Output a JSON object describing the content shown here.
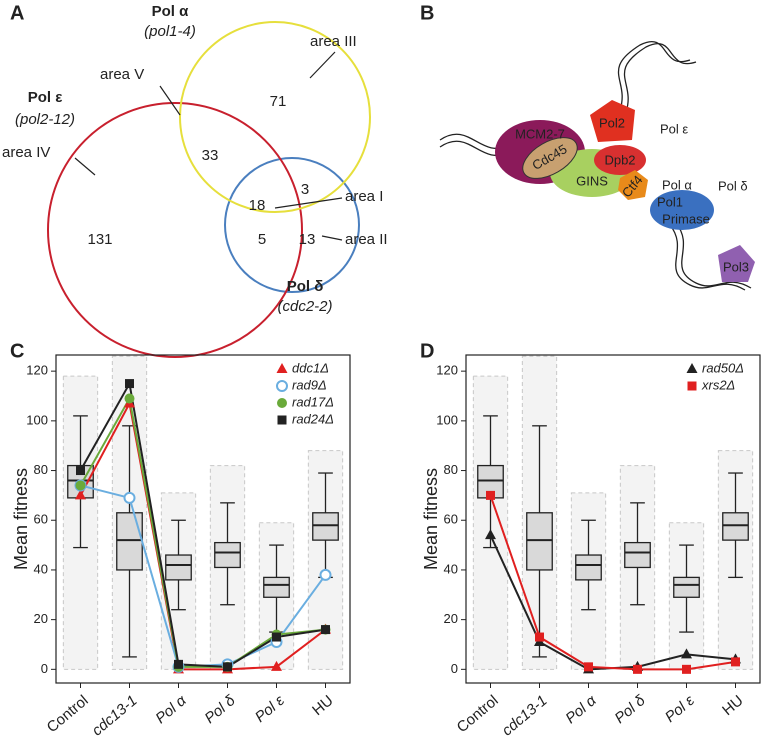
{
  "panels": [
    "A",
    "B",
    "C",
    "D"
  ],
  "venn": {
    "sets": [
      {
        "name": "Pol α",
        "genotype": "(pol1-4)",
        "color": "#e6df3c"
      },
      {
        "name": "Pol ε",
        "genotype": "(pol2-12)",
        "color": "#c8202e"
      },
      {
        "name": "Pol δ",
        "genotype": "(cdc2-2)",
        "color": "#4a7fbf"
      }
    ],
    "counts": [
      71,
      33,
      18,
      3,
      5,
      13,
      131
    ],
    "area_labels": [
      "area III",
      "area V",
      "area IV",
      "area I",
      "area II"
    ]
  },
  "diagram": {
    "labels": [
      "MCM2-7",
      "Cdc45",
      "GINS",
      "Pol2",
      "Dpb2",
      "Ctf4",
      "Pol1",
      "Primase",
      "Pol ε",
      "Pol α",
      "Pol δ",
      "Pol3"
    ]
  },
  "chart_data": [
    {
      "type": "box",
      "ylabel": "Mean fitness",
      "categories": [
        "Control",
        "cdc13-1",
        "Pol α",
        "Pol δ",
        "Pol ε",
        "HU"
      ],
      "category_styles": [
        "normal",
        "italic",
        "italic",
        "italic",
        "italic",
        "normal"
      ],
      "ylim": [
        -5.5,
        126.5
      ],
      "yticks": [
        0,
        20,
        40,
        60,
        80,
        100,
        120
      ],
      "boxes": [
        {
          "range_low": 0,
          "range_high": 118,
          "whisker_low": 49,
          "q1": 69,
          "median": 76,
          "q3": 82,
          "whisker_high": 102
        },
        {
          "range_low": 0,
          "range_high": 126,
          "whisker_low": 5,
          "q1": 40,
          "median": 52,
          "q3": 63,
          "whisker_high": 98
        },
        {
          "range_low": 0,
          "range_high": 71,
          "whisker_low": 24,
          "q1": 36,
          "median": 42,
          "q3": 46,
          "whisker_high": 60
        },
        {
          "range_low": 0,
          "range_high": 82,
          "whisker_low": 26,
          "q1": 41,
          "median": 47,
          "q3": 51,
          "whisker_high": 67
        },
        {
          "range_low": 0,
          "range_high": 59,
          "whisker_low": 15,
          "q1": 29,
          "median": 34,
          "q3": 37,
          "whisker_high": 50
        },
        {
          "range_low": 0,
          "range_high": 88,
          "whisker_low": 37,
          "q1": 52,
          "median": 58,
          "q3": 63,
          "whisker_high": 79
        }
      ],
      "series": [
        {
          "name": "ddc1Δ",
          "color": "#e02020",
          "marker": "triangle",
          "values": [
            70,
            107,
            0,
            0,
            1,
            16
          ]
        },
        {
          "name": "rad9Δ",
          "color": "#6aaee0",
          "marker": "open-circle",
          "values": [
            74,
            69,
            1,
            2,
            11,
            38
          ]
        },
        {
          "name": "rad17Δ",
          "color": "#6aaa3a",
          "marker": "circle",
          "values": [
            74,
            109,
            1,
            1,
            14,
            16
          ]
        },
        {
          "name": "rad24Δ",
          "color": "#222222",
          "marker": "square",
          "values": [
            80,
            115,
            2,
            1,
            13,
            16
          ]
        }
      ],
      "legend": "top-right"
    },
    {
      "type": "box",
      "ylabel": "Mean fitness",
      "categories": [
        "Control",
        "cdc13-1",
        "Pol α",
        "Pol δ",
        "Pol ε",
        "HU"
      ],
      "category_styles": [
        "normal",
        "italic",
        "italic",
        "italic",
        "italic",
        "normal"
      ],
      "ylim": [
        -5.5,
        126.5
      ],
      "yticks": [
        0,
        20,
        40,
        60,
        80,
        100,
        120
      ],
      "boxes": [
        {
          "range_low": 0,
          "range_high": 118,
          "whisker_low": 49,
          "q1": 69,
          "median": 76,
          "q3": 82,
          "whisker_high": 102
        },
        {
          "range_low": 0,
          "range_high": 126,
          "whisker_low": 5,
          "q1": 40,
          "median": 52,
          "q3": 63,
          "whisker_high": 98
        },
        {
          "range_low": 0,
          "range_high": 71,
          "whisker_low": 24,
          "q1": 36,
          "median": 42,
          "q3": 46,
          "whisker_high": 60
        },
        {
          "range_low": 0,
          "range_high": 82,
          "whisker_low": 26,
          "q1": 41,
          "median": 47,
          "q3": 51,
          "whisker_high": 67
        },
        {
          "range_low": 0,
          "range_high": 59,
          "whisker_low": 15,
          "q1": 29,
          "median": 34,
          "q3": 37,
          "whisker_high": 50
        },
        {
          "range_low": 0,
          "range_high": 88,
          "whisker_low": 37,
          "q1": 52,
          "median": 58,
          "q3": 63,
          "whisker_high": 79
        }
      ],
      "series": [
        {
          "name": "rad50Δ",
          "color": "#222222",
          "marker": "triangle",
          "values": [
            54,
            11,
            0,
            1,
            6,
            4
          ]
        },
        {
          "name": "xrs2Δ",
          "color": "#e02020",
          "marker": "square",
          "values": [
            70,
            13,
            1,
            0,
            0,
            3
          ]
        }
      ],
      "legend": "top-right"
    }
  ]
}
